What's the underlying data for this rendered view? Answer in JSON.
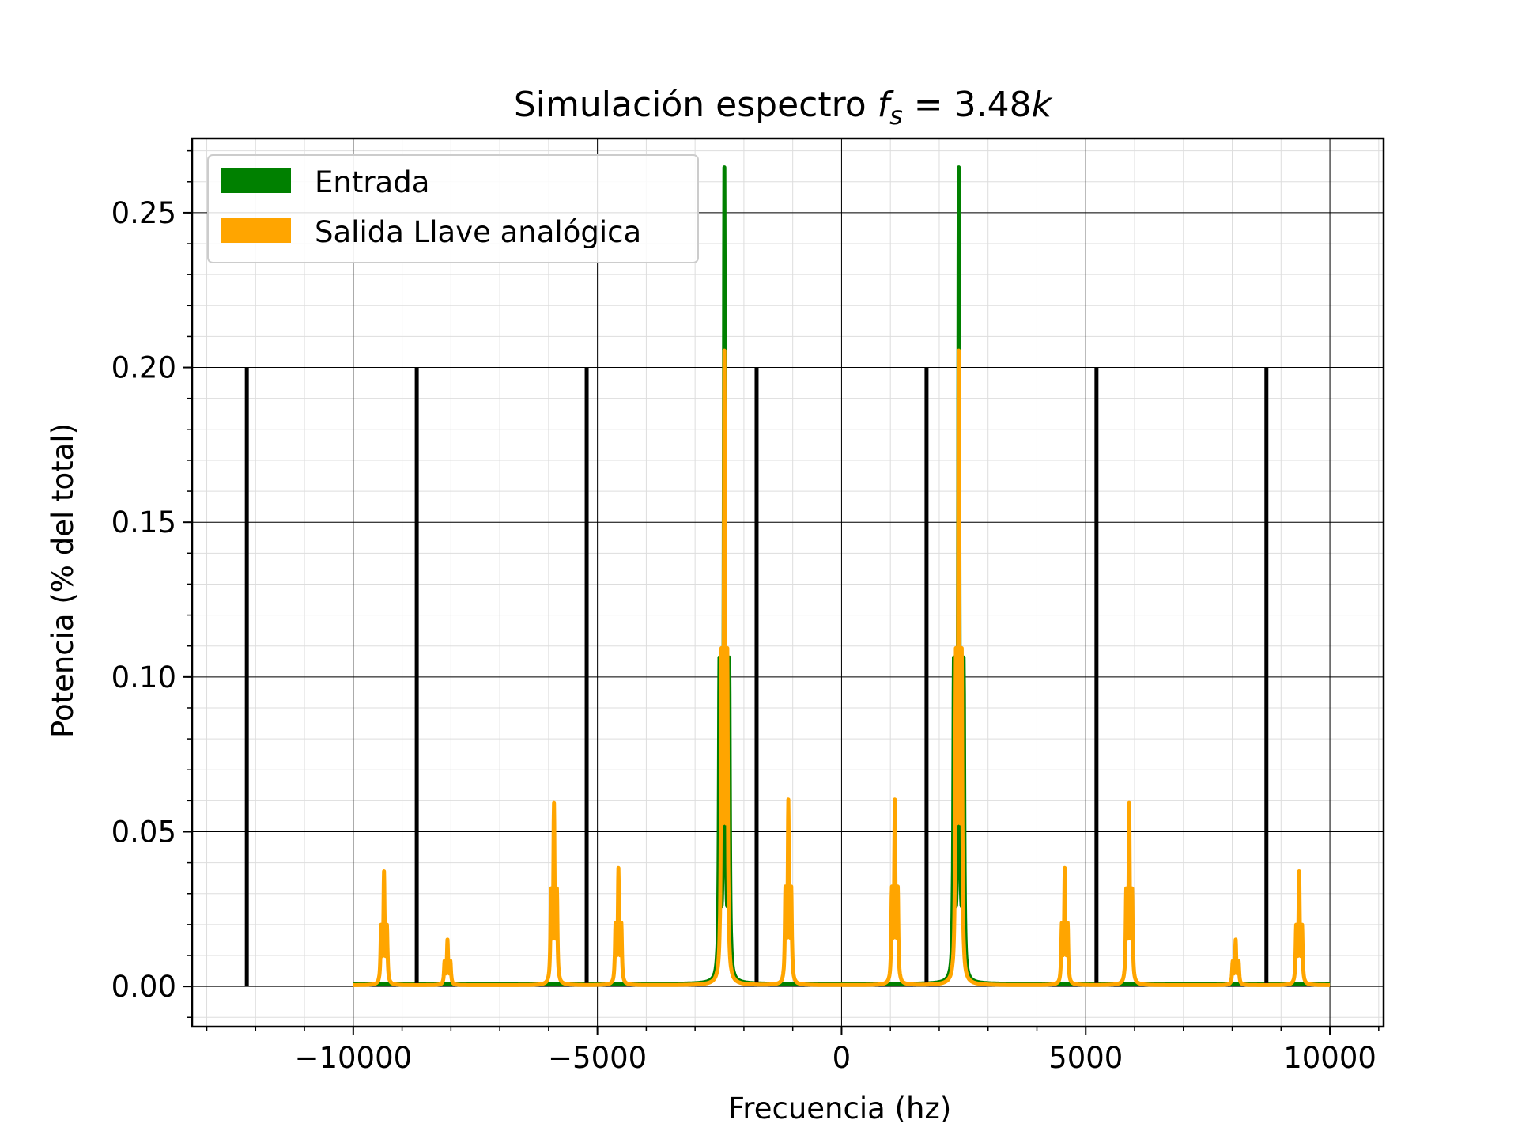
{
  "chart_data": {
    "type": "line",
    "title_main": "Simulación espectro ",
    "title_math_f": "f",
    "title_math_sub": "s",
    "title_math_eq": " = 3.48",
    "title_math_k": "k",
    "xlabel": "Frecuencia (hz)",
    "ylabel": "Potencia (% del total)",
    "xlim": [
      -13300,
      11100
    ],
    "ylim": [
      -0.013,
      0.274
    ],
    "xticks": [
      -10000,
      -5000,
      0,
      5000,
      10000
    ],
    "xtick_labels": [
      "−10000",
      "−5000",
      "0",
      "5000",
      "10000"
    ],
    "yticks": [
      0.0,
      0.05,
      0.1,
      0.15,
      0.2,
      0.25
    ],
    "ytick_labels": [
      "0.00",
      "0.05",
      "0.10",
      "0.15",
      "0.20",
      "0.25"
    ],
    "grid": true,
    "legend_position": "top-left",
    "legend": [
      {
        "label": "Entrada",
        "color": "#008000"
      },
      {
        "label": "Salida Llave analógica",
        "color": "#FFA500"
      }
    ],
    "x_range": [
      -10000,
      10000
    ],
    "series": [
      {
        "name": "Entrada",
        "color": "#008000",
        "peaks": [
          {
            "x": -2400,
            "y": 0.26
          },
          {
            "x": 2400,
            "y": 0.26
          },
          {
            "x": -2300,
            "y": 0.1
          },
          {
            "x": -2500,
            "y": 0.1
          },
          {
            "x": 2300,
            "y": 0.1
          },
          {
            "x": 2500,
            "y": 0.1
          }
        ]
      },
      {
        "name": "Salida Llave analógica",
        "color": "#FFA500",
        "peaks": [
          {
            "x": -9370,
            "y": 0.035
          },
          {
            "x": 9370,
            "y": 0.035
          },
          {
            "x": -8070,
            "y": 0.014
          },
          {
            "x": 8070,
            "y": 0.014
          },
          {
            "x": -5890,
            "y": 0.056
          },
          {
            "x": 5890,
            "y": 0.056
          },
          {
            "x": -4570,
            "y": 0.036
          },
          {
            "x": 4570,
            "y": 0.036
          },
          {
            "x": -2400,
            "y": 0.195
          },
          {
            "x": 2400,
            "y": 0.195
          },
          {
            "x": -1090,
            "y": 0.057
          },
          {
            "x": 1090,
            "y": 0.057
          }
        ]
      }
    ],
    "sampling_markers": {
      "color": "#000000",
      "x": [
        -12180,
        -8700,
        -5220,
        -1740,
        1740,
        5220,
        8700
      ],
      "y": 0.2
    }
  }
}
